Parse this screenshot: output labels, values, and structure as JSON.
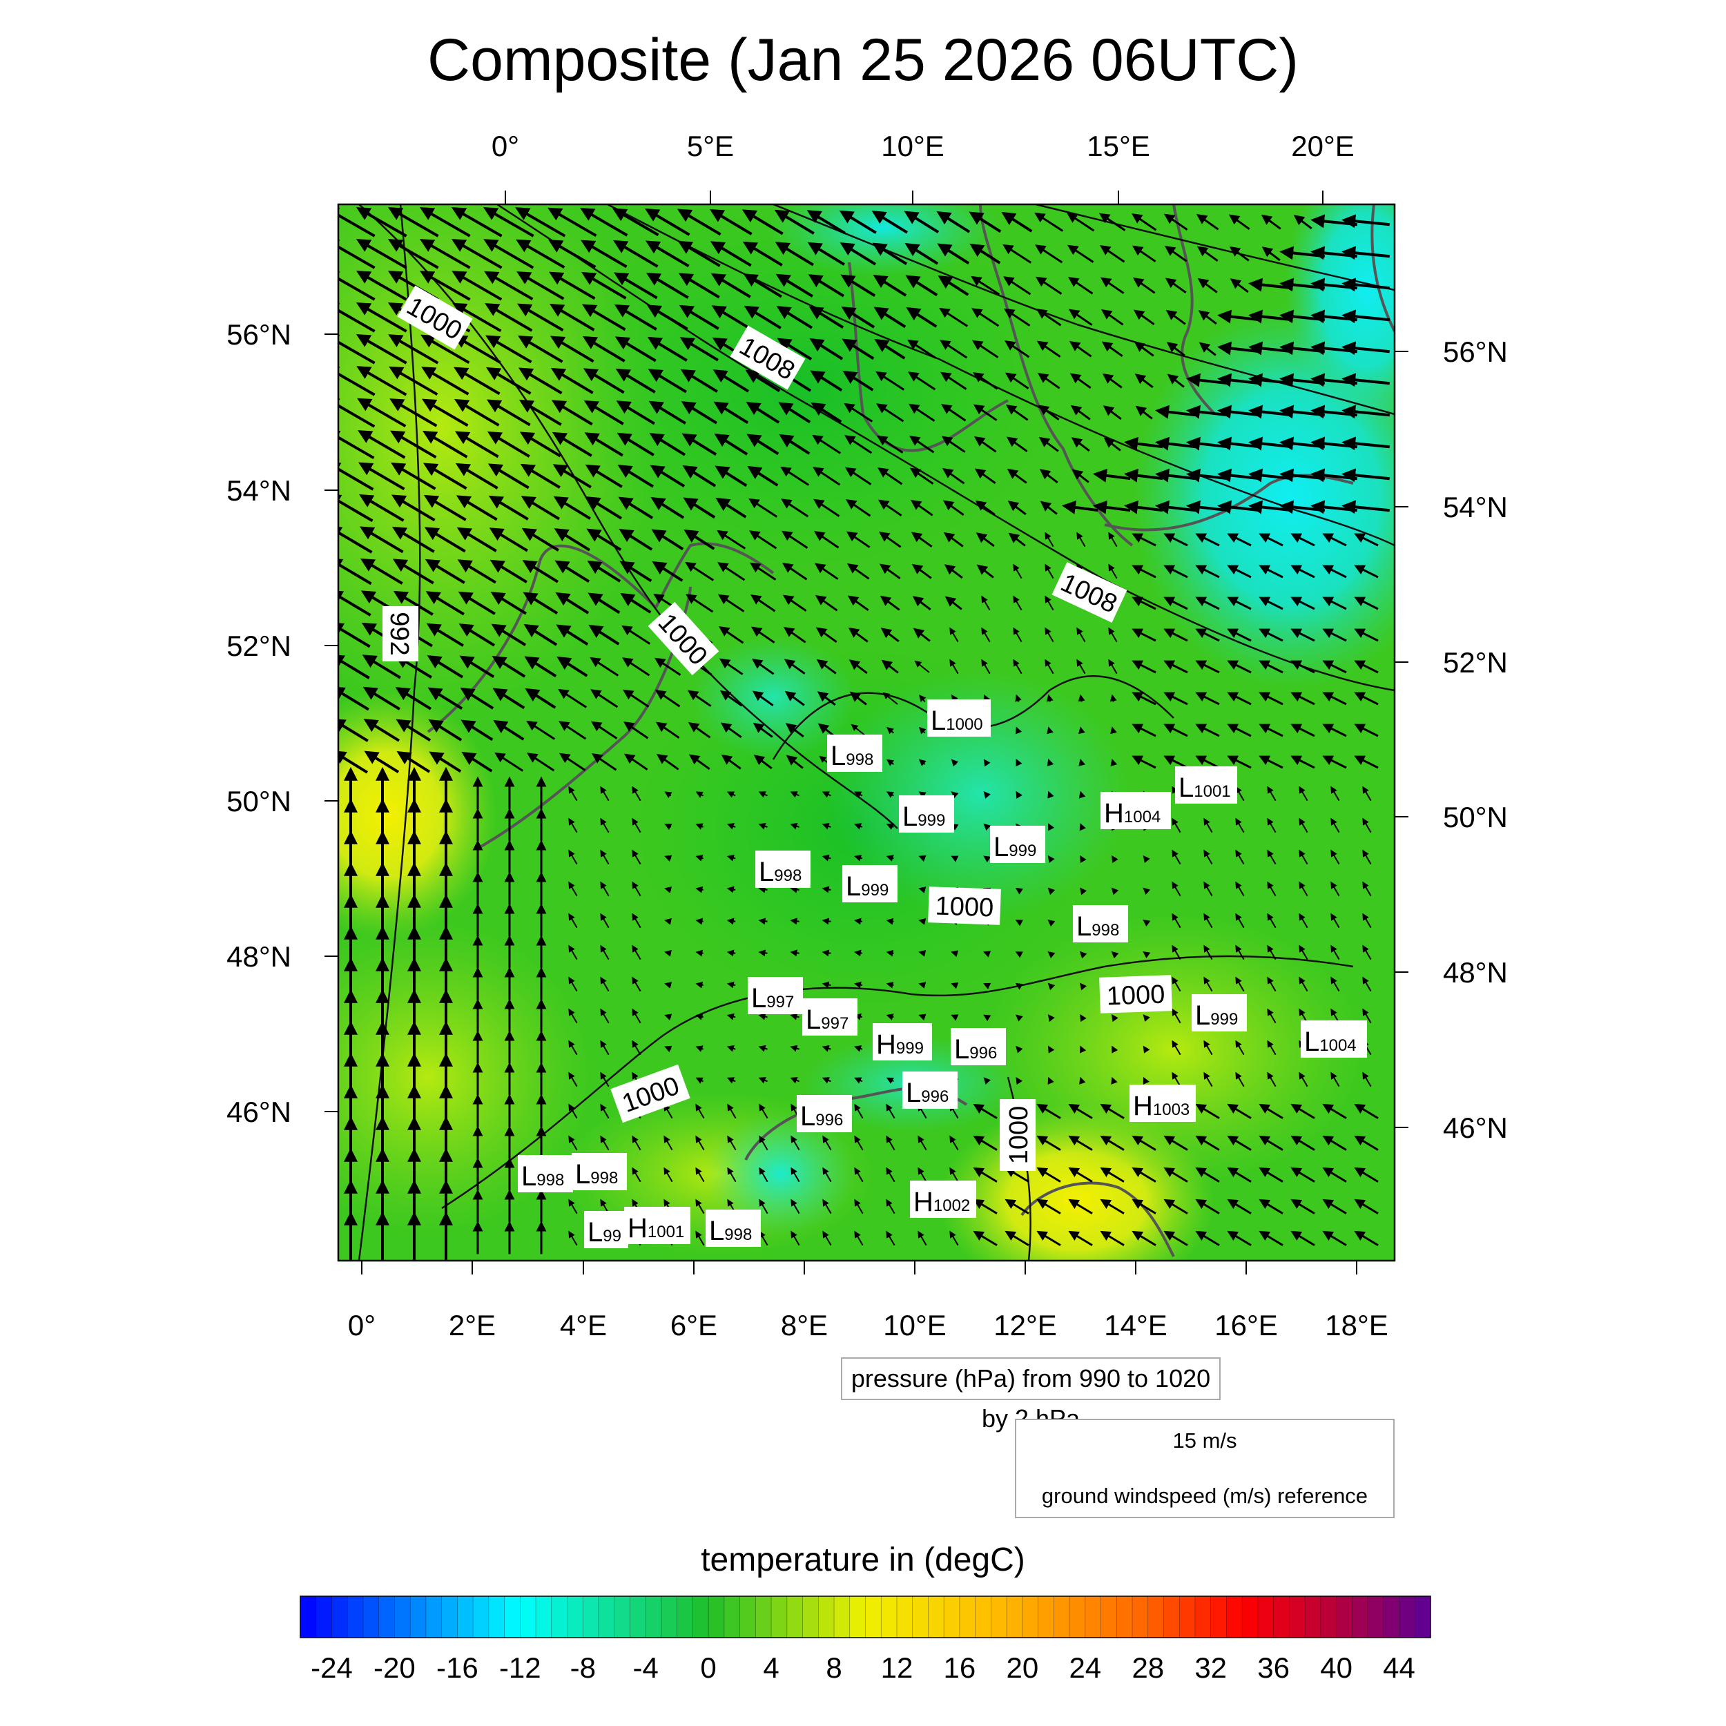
{
  "title": "Composite (Jan 25 2026 06UTC)",
  "top_lon_labels": [
    "0°",
    "5°E",
    "10°E",
    "15°E",
    "20°E"
  ],
  "bottom_lon_labels": [
    "0°",
    "2°E",
    "4°E",
    "6°E",
    "8°E",
    "10°E",
    "12°E",
    "14°E",
    "16°E",
    "18°E"
  ],
  "left_lat_labels": [
    "56°N",
    "54°N",
    "52°N",
    "50°N",
    "48°N",
    "46°N"
  ],
  "right_lat_labels": [
    "56°N",
    "54°N",
    "52°N",
    "50°N",
    "48°N",
    "46°N"
  ],
  "isobar_labels": [
    "1000",
    "1008",
    "992",
    "1000",
    "1008",
    "1000",
    "1000",
    "1000",
    "1000"
  ],
  "pressure_centers": [
    {
      "letter": "L",
      "value": "1000"
    },
    {
      "letter": "L",
      "value": "998"
    },
    {
      "letter": "L",
      "value": "1001"
    },
    {
      "letter": "H",
      "value": "1004"
    },
    {
      "letter": "L",
      "value": "999"
    },
    {
      "letter": "L",
      "value": "999"
    },
    {
      "letter": "L",
      "value": "998"
    },
    {
      "letter": "L",
      "value": "999"
    },
    {
      "letter": "L",
      "value": "998"
    },
    {
      "letter": "L",
      "value": "997"
    },
    {
      "letter": "L",
      "value": "997"
    },
    {
      "letter": "H",
      "value": "999"
    },
    {
      "letter": "L",
      "value": "996"
    },
    {
      "letter": "L",
      "value": "999"
    },
    {
      "letter": "L",
      "value": "1004"
    },
    {
      "letter": "L",
      "value": "996"
    },
    {
      "letter": "H",
      "value": "1003"
    },
    {
      "letter": "L",
      "value": "996"
    },
    {
      "letter": "L",
      "value": "998"
    },
    {
      "letter": "L",
      "value": "998"
    },
    {
      "letter": "H",
      "value": "1002"
    },
    {
      "letter": "L",
      "value": "99"
    },
    {
      "letter": "H",
      "value": "1001"
    },
    {
      "letter": "L",
      "value": "998"
    }
  ],
  "pressure_legend": "pressure (hPa) from 990 to 1020 by 2 hPa",
  "wind_reference": {
    "speed_label": "15 m/s",
    "description": "ground windspeed (m/s) reference"
  },
  "colorbar": {
    "title": "temperature in (degC)",
    "tick_labels": [
      "-24",
      "-20",
      "-16",
      "-12",
      "-8",
      "-4",
      "0",
      "4",
      "8",
      "12",
      "16",
      "20",
      "24",
      "28",
      "32",
      "36",
      "40",
      "44"
    ],
    "min": -26,
    "max": 46,
    "step": 1
  },
  "colors": {
    "field_green": "#3cc81e",
    "cold_cyan": "#14ecec",
    "warm_yellow": "#f0f000",
    "isobar": "#111111",
    "coast": "#555555"
  }
}
